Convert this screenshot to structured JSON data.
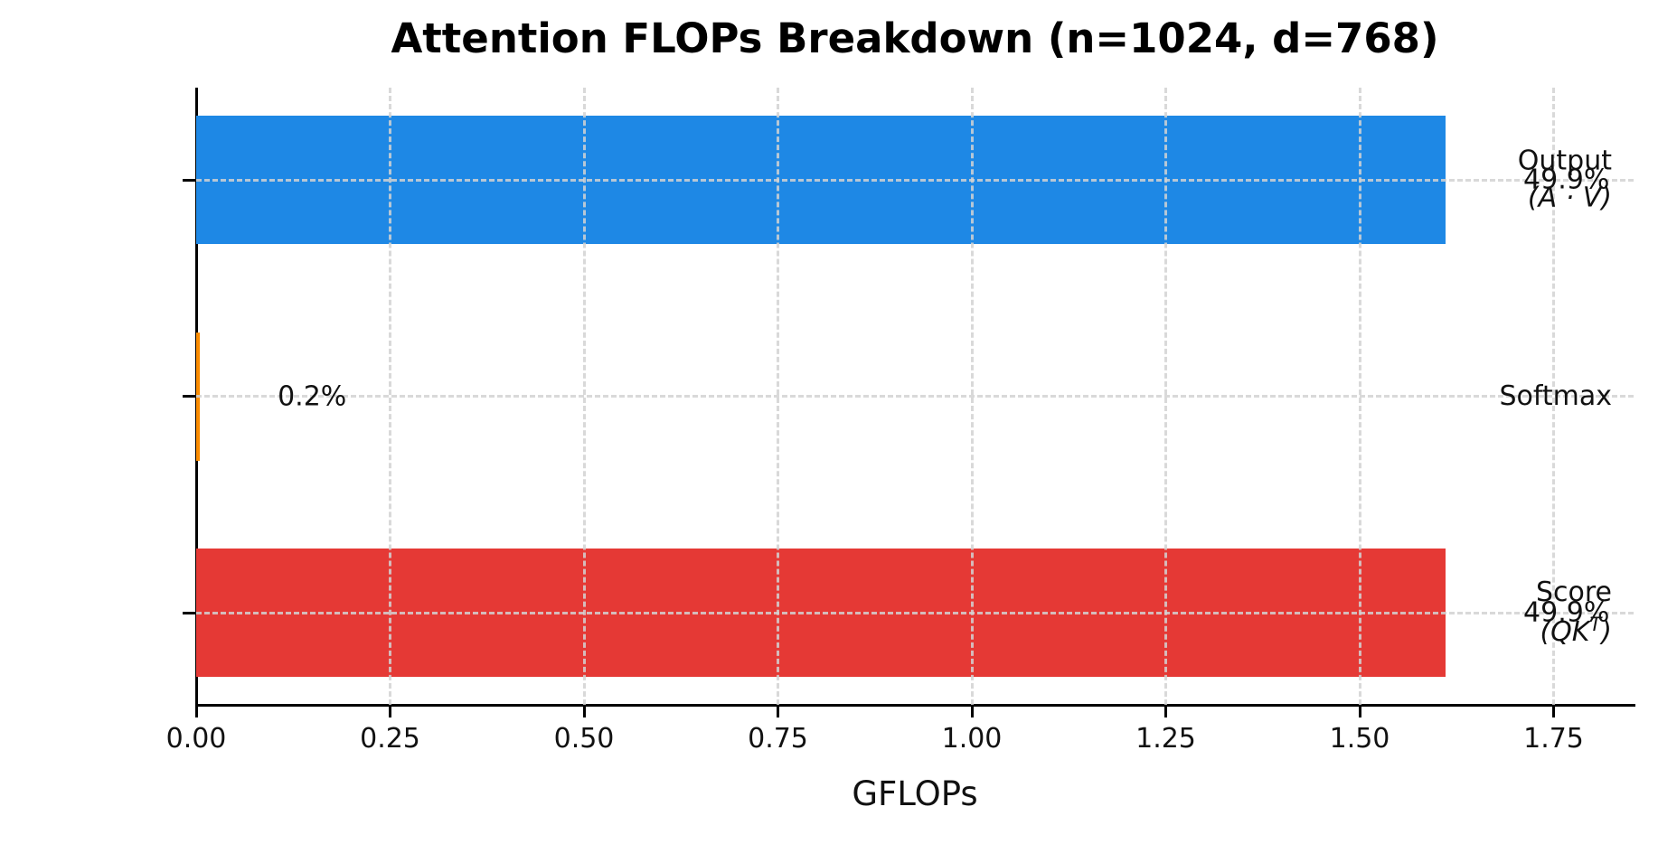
{
  "chart_data": {
    "type": "bar",
    "orientation": "horizontal",
    "title": "Attention FLOPs Breakdown (n=1024, d=768)",
    "xlabel": "GFLOPs",
    "xlim": [
      0,
      1.853
    ],
    "grid": "dashed",
    "legend": "none",
    "xticks": [
      {
        "value": 0.0,
        "label": "0.00"
      },
      {
        "value": 0.25,
        "label": "0.25"
      },
      {
        "value": 0.5,
        "label": "0.50"
      },
      {
        "value": 0.75,
        "label": "0.75"
      },
      {
        "value": 1.0,
        "label": "1.00"
      },
      {
        "value": 1.25,
        "label": "1.25"
      },
      {
        "value": 1.5,
        "label": "1.50"
      },
      {
        "value": 1.75,
        "label": "1.75"
      }
    ],
    "bars": [
      {
        "name": "output",
        "label": "Output",
        "sub_pre": "(A · V",
        "sub_sup": "",
        "sub_post": ")",
        "value_gflops": 1.611,
        "pct_label": "49.9%",
        "color": "#1e88e5"
      },
      {
        "name": "softmax",
        "label": "Softmax",
        "sub_pre": "",
        "sub_sup": "",
        "sub_post": "",
        "value_gflops": 0.005,
        "pct_label": "0.2%",
        "color": "#fb8c00"
      },
      {
        "name": "score",
        "label": "Score",
        "sub_pre": "(QK",
        "sub_sup": "T",
        "sub_post": ")",
        "value_gflops": 1.611,
        "pct_label": "49.9%",
        "color": "#e53935"
      }
    ]
  }
}
